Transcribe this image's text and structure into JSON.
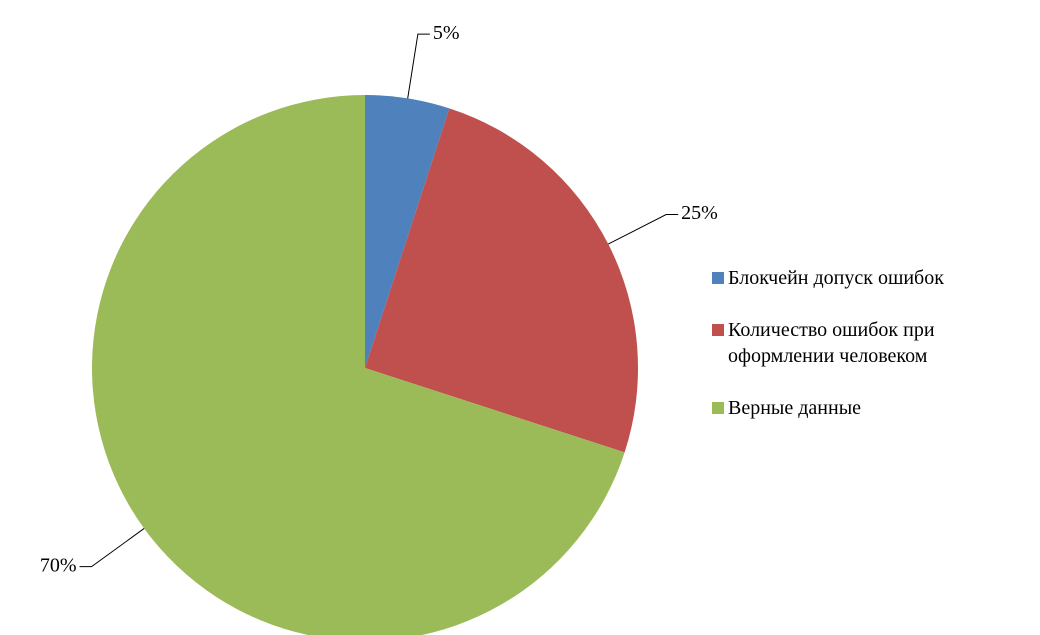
{
  "chart_data": {
    "type": "pie",
    "categories": [
      "Блокчейн допуск ошибок",
      "Количество ошибок при оформлении человеком",
      "Верные данные"
    ],
    "values": [
      5,
      25,
      70
    ],
    "value_labels": [
      "5%",
      "25%",
      "70%"
    ],
    "colors": [
      "#4f81bd",
      "#c0504d",
      "#9bbb59"
    ],
    "legend": "right"
  }
}
